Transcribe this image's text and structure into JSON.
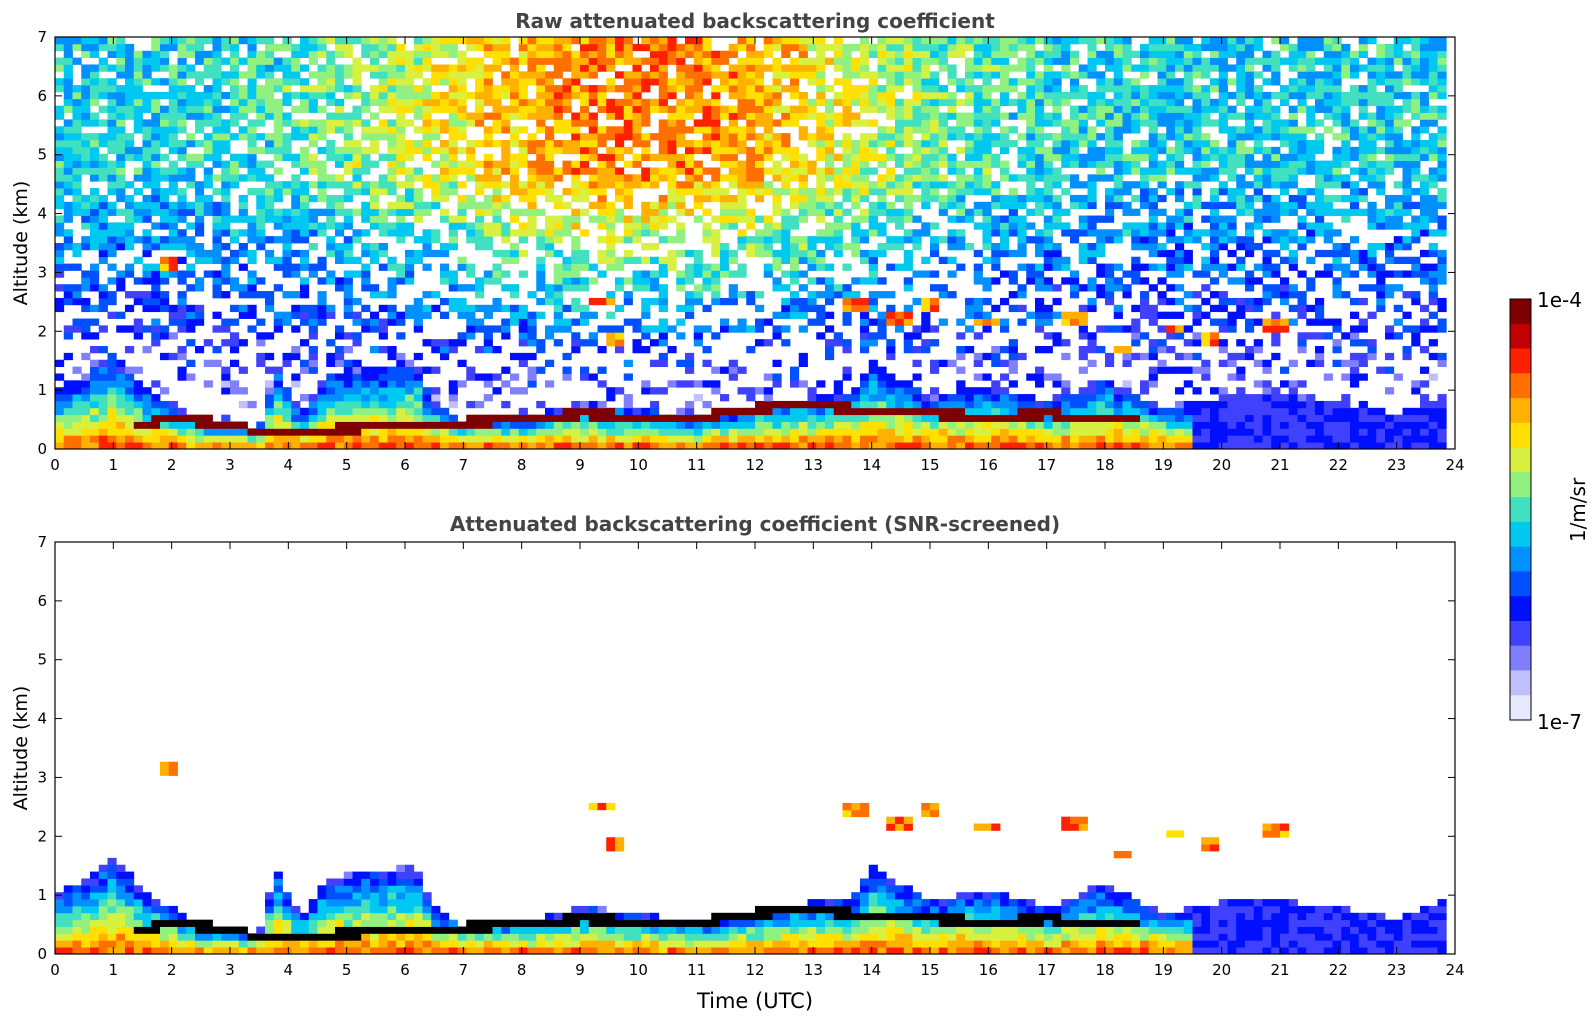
{
  "chart_data": [
    {
      "type": "heatmap",
      "title": "Raw attenuated backscattering coefficient",
      "xlabel": "",
      "ylabel": "Altitude (km)",
      "xlim": [
        0,
        24
      ],
      "ylim": [
        0,
        7
      ],
      "xticks": [
        "0",
        "1",
        "2",
        "3",
        "4",
        "5",
        "6",
        "7",
        "8",
        "9",
        "10",
        "11",
        "12",
        "13",
        "14",
        "15",
        "16",
        "17",
        "18",
        "19",
        "20",
        "21",
        "22",
        "23",
        "24"
      ],
      "yticks": [
        "0",
        "1",
        "2",
        "3",
        "4",
        "5",
        "6",
        "7"
      ],
      "screened": false,
      "features": {
        "boundary_layer_top_km": [
          [
            0,
            1.0
          ],
          [
            0.6,
            1.3
          ],
          [
            1.0,
            1.7
          ],
          [
            1.5,
            1.1
          ],
          [
            2.0,
            0.8
          ],
          [
            2.5,
            0.45
          ],
          [
            3.0,
            0.4
          ],
          [
            3.5,
            0.35
          ],
          [
            3.8,
            1.5
          ],
          [
            4.2,
            0.6
          ],
          [
            4.7,
            1.3
          ],
          [
            5.3,
            1.4
          ],
          [
            6.2,
            1.5
          ],
          [
            6.5,
            0.8
          ],
          [
            7.0,
            0.5
          ],
          [
            7.5,
            0.6
          ],
          [
            8.0,
            0.55
          ],
          [
            9.0,
            0.8
          ],
          [
            10.0,
            0.7
          ],
          [
            11.0,
            0.55
          ],
          [
            12.0,
            0.75
          ],
          [
            13.0,
            0.9
          ],
          [
            13.7,
            1.0
          ],
          [
            14.0,
            1.5
          ],
          [
            15.0,
            0.9
          ],
          [
            16.0,
            1.1
          ],
          [
            17.0,
            0.8
          ],
          [
            18.0,
            1.2
          ],
          [
            19.0,
            0.7
          ],
          [
            20.0,
            0.9
          ],
          [
            21.0,
            0.9
          ],
          [
            22.0,
            0.8
          ],
          [
            23.0,
            0.6
          ],
          [
            23.8,
            0.9
          ]
        ],
        "cloud_layer_km": [
          [
            1.4,
            0.38
          ],
          [
            2.0,
            0.52
          ],
          [
            3.0,
            0.42
          ],
          [
            3.5,
            0.3
          ],
          [
            4.0,
            0.3
          ],
          [
            8.0,
            0.5
          ],
          [
            9.0,
            0.6
          ],
          [
            10.0,
            0.55
          ],
          [
            11.0,
            0.52
          ],
          [
            12.0,
            0.7
          ],
          [
            13.0,
            0.75
          ],
          [
            14.0,
            0.65
          ],
          [
            15.0,
            0.6
          ],
          [
            16.0,
            0.55
          ],
          [
            17.0,
            0.6
          ],
          [
            18.0,
            0.5
          ]
        ],
        "elevated_aerosol_patches": [
          [
            1.95,
            3.12
          ],
          [
            9.4,
            2.5
          ],
          [
            9.6,
            1.9
          ],
          [
            13.7,
            2.45
          ],
          [
            14.5,
            2.25
          ],
          [
            15.0,
            2.45
          ],
          [
            16.0,
            2.15
          ],
          [
            17.5,
            2.2
          ],
          [
            18.3,
            1.7
          ],
          [
            19.2,
            2.05
          ],
          [
            19.8,
            1.85
          ],
          [
            20.9,
            2.1
          ]
        ]
      }
    },
    {
      "type": "heatmap",
      "title": "Attenuated backscattering coefficient (SNR-screened)",
      "xlabel": "Time (UTC)",
      "ylabel": "Altitude (km)",
      "xlim": [
        0,
        24
      ],
      "ylim": [
        0,
        7
      ],
      "xticks": [
        "0",
        "1",
        "2",
        "3",
        "4",
        "5",
        "6",
        "7",
        "8",
        "9",
        "10",
        "11",
        "12",
        "13",
        "14",
        "15",
        "16",
        "17",
        "18",
        "19",
        "20",
        "21",
        "22",
        "23",
        "24"
      ],
      "yticks": [
        "0",
        "1",
        "2",
        "3",
        "4",
        "5",
        "6",
        "7"
      ],
      "screened": true
    }
  ],
  "colorbar": {
    "label": "1/m/sr",
    "max_label": "1e-4",
    "min_label": "1e-7",
    "colors": [
      "#7f0000",
      "#c00000",
      "#ff2000",
      "#ff7000",
      "#ffb000",
      "#ffe000",
      "#d8f040",
      "#90f080",
      "#40e0c0",
      "#00c8f0",
      "#0090ff",
      "#0050ff",
      "#0010ff",
      "#4040ff",
      "#8080ff",
      "#c0c0ff",
      "#e8e8ff"
    ]
  }
}
